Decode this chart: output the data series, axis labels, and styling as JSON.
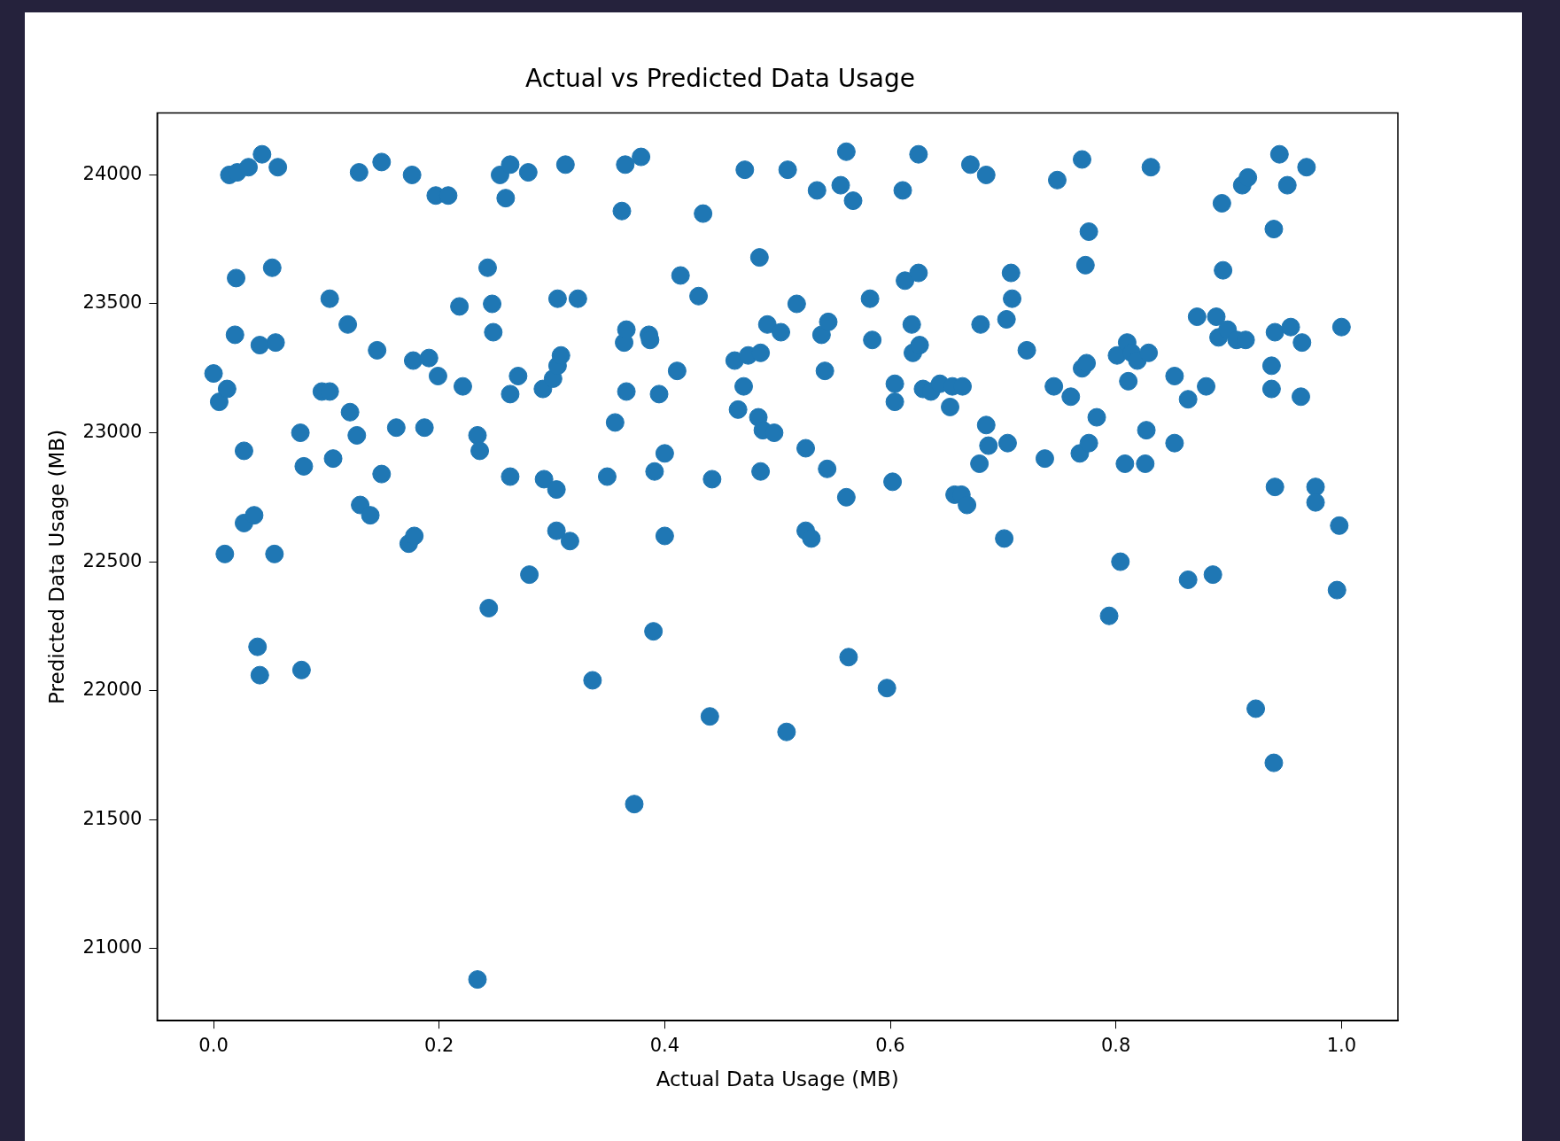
{
  "chart_data": {
    "type": "scatter",
    "title": "Actual vs Predicted Data Usage",
    "xlabel": "Actual Data Usage (MB)",
    "ylabel": "Predicted Data Usage (MB)",
    "xlim": [
      -0.05,
      1.05
    ],
    "ylim": [
      20720,
      24240
    ],
    "xticks": [
      {
        "value": 0,
        "label": "0.0"
      },
      {
        "value": 0.2,
        "label": "0.2"
      },
      {
        "value": 0.4,
        "label": "0.4"
      },
      {
        "value": 0.6,
        "label": "0.6"
      },
      {
        "value": 0.8,
        "label": "0.8"
      },
      {
        "value": 1,
        "label": "1.0"
      }
    ],
    "yticks": [
      21000,
      21500,
      22000,
      22500,
      23000,
      23500,
      24000
    ],
    "marker": "circle",
    "grid": false,
    "legend": false,
    "series": [
      {
        "color": "#1f77b4",
        "x": [
          0.0,
          0.005,
          0.012,
          0.01,
          0.014,
          0.021,
          0.02,
          0.019,
          0.027,
          0.027,
          0.031,
          0.036,
          0.043,
          0.041,
          0.039,
          0.041,
          0.052,
          0.055,
          0.057,
          0.054,
          0.077,
          0.08,
          0.078,
          0.096,
          0.103,
          0.103,
          0.106,
          0.119,
          0.121,
          0.127,
          0.129,
          0.13,
          0.139,
          0.145,
          0.149,
          0.149,
          0.162,
          0.173,
          0.178,
          0.176,
          0.177,
          0.187,
          0.191,
          0.199,
          0.197,
          0.208,
          0.218,
          0.221,
          0.234,
          0.236,
          0.234,
          0.244,
          0.243,
          0.247,
          0.248,
          0.254,
          0.259,
          0.263,
          0.263,
          0.263,
          0.27,
          0.279,
          0.28,
          0.292,
          0.293,
          0.301,
          0.304,
          0.305,
          0.308,
          0.305,
          0.304,
          0.312,
          0.316,
          0.323,
          0.336,
          0.349,
          0.356,
          0.362,
          0.365,
          0.364,
          0.366,
          0.366,
          0.373,
          0.379,
          0.386,
          0.387,
          0.39,
          0.391,
          0.395,
          0.4,
          0.4,
          0.411,
          0.414,
          0.43,
          0.434,
          0.442,
          0.44,
          0.462,
          0.465,
          0.47,
          0.471,
          0.474,
          0.484,
          0.485,
          0.483,
          0.485,
          0.487,
          0.491,
          0.497,
          0.503,
          0.508,
          0.509,
          0.517,
          0.525,
          0.525,
          0.53,
          0.535,
          0.539,
          0.545,
          0.544,
          0.542,
          0.556,
          0.561,
          0.561,
          0.563,
          0.567,
          0.582,
          0.584,
          0.597,
          0.602,
          0.604,
          0.604,
          0.611,
          0.613,
          0.619,
          0.62,
          0.625,
          0.625,
          0.626,
          0.629,
          0.636,
          0.644,
          0.653,
          0.655,
          0.657,
          0.664,
          0.663,
          0.668,
          0.671,
          0.685,
          0.68,
          0.679,
          0.685,
          0.687,
          0.701,
          0.703,
          0.707,
          0.708,
          0.704,
          0.721,
          0.737,
          0.745,
          0.748,
          0.76,
          0.768,
          0.77,
          0.77,
          0.773,
          0.774,
          0.776,
          0.776,
          0.783,
          0.794,
          0.801,
          0.804,
          0.808,
          0.811,
          0.81,
          0.814,
          0.819,
          0.826,
          0.827,
          0.829,
          0.831,
          0.852,
          0.852,
          0.864,
          0.864,
          0.872,
          0.88,
          0.886,
          0.889,
          0.891,
          0.894,
          0.895,
          0.899,
          0.907,
          0.912,
          0.917,
          0.915,
          0.924,
          0.938,
          0.938,
          0.94,
          0.94,
          0.941,
          0.941,
          0.945,
          0.952,
          0.955,
          0.964,
          0.965,
          0.969,
          0.977,
          0.977,
          1.0,
          0.998,
          0.996
        ],
        "values": [
          23230,
          23120,
          23170,
          22530,
          24000,
          24010,
          23600,
          23380,
          22930,
          22650,
          24030,
          22680,
          24080,
          23340,
          22170,
          22060,
          23640,
          23350,
          24030,
          22530,
          23000,
          22870,
          22080,
          23160,
          23160,
          23520,
          22900,
          23420,
          23080,
          22990,
          24010,
          22720,
          22680,
          23320,
          22840,
          24050,
          23020,
          22570,
          22600,
          24000,
          23280,
          23020,
          23290,
          23220,
          23920,
          23920,
          23490,
          23180,
          22990,
          22930,
          20880,
          22320,
          23640,
          23500,
          23390,
          24000,
          23910,
          24040,
          22830,
          23150,
          23220,
          24010,
          22450,
          23170,
          22820,
          23210,
          22780,
          23260,
          23300,
          23520,
          22620,
          24040,
          22580,
          23520,
          22040,
          22830,
          23040,
          23860,
          24040,
          23350,
          23400,
          23160,
          21560,
          24070,
          23380,
          23360,
          22230,
          22850,
          23150,
          22920,
          22600,
          23240,
          23610,
          23530,
          23850,
          22820,
          21900,
          23280,
          23090,
          23180,
          24020,
          23300,
          23680,
          23310,
          23060,
          22850,
          23010,
          23420,
          23000,
          23390,
          21840,
          24020,
          23500,
          22940,
          22620,
          22590,
          23940,
          23380,
          23430,
          22860,
          23240,
          23960,
          24090,
          22750,
          22130,
          23900,
          23520,
          23360,
          22010,
          22810,
          23190,
          23120,
          23940,
          23590,
          23420,
          23310,
          24080,
          23620,
          23340,
          23170,
          23160,
          23190,
          23100,
          23180,
          22760,
          23180,
          22760,
          22720,
          24040,
          24000,
          23420,
          22880,
          23030,
          22950,
          22590,
          23440,
          23620,
          23520,
          22960,
          23320,
          22900,
          23180,
          23980,
          23140,
          22920,
          24060,
          23250,
          23650,
          23270,
          22960,
          23780,
          23060,
          22290,
          23300,
          22500,
          22880,
          23200,
          23350,
          23310,
          23280,
          22880,
          23010,
          23310,
          24030,
          22960,
          23220,
          23130,
          22430,
          23450,
          23180,
          22450,
          23450,
          23370,
          23890,
          23630,
          23400,
          23360,
          23960,
          23990,
          23360,
          21930,
          23170,
          23260,
          23790,
          21720,
          22790,
          23390,
          24080,
          23960,
          23410,
          23140,
          23350,
          24030,
          22790,
          22730,
          23410,
          22640,
          22390
        ]
      }
    ]
  }
}
